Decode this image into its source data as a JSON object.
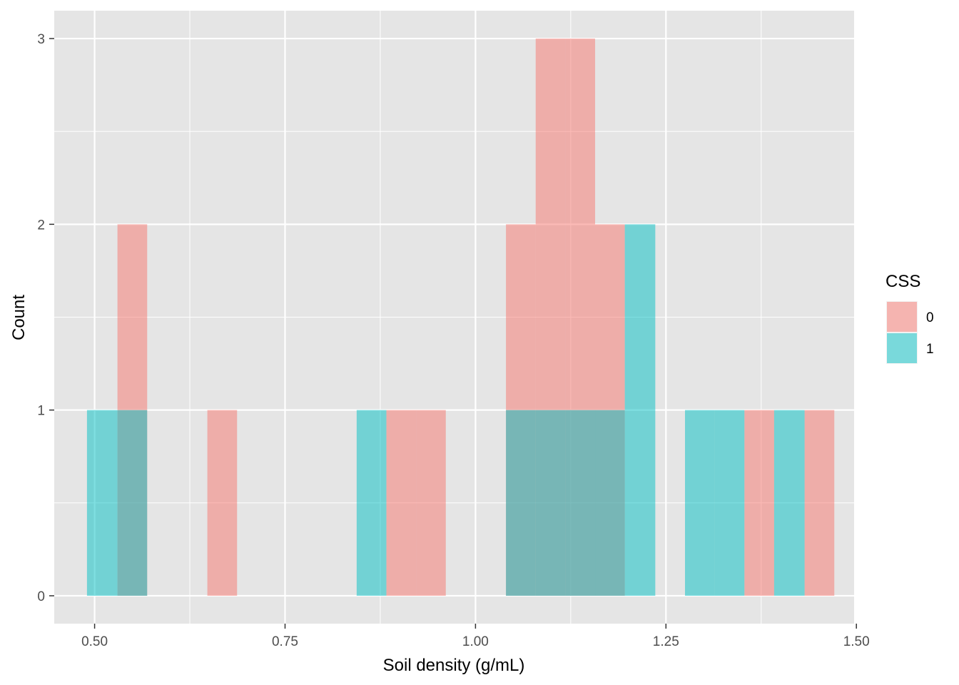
{
  "chart_data": {
    "type": "bar",
    "subtype": "histogram-overlaid",
    "title": "",
    "xlabel": "Soil density (g/mL)",
    "ylabel": "Count",
    "xlim": [
      0.447,
      1.497
    ],
    "ylim": [
      -0.15,
      3.15
    ],
    "x_ticks": [
      "0.50",
      "0.75",
      "1.00",
      "1.25",
      "1.50"
    ],
    "x_tick_values": [
      0.5,
      0.75,
      1.0,
      1.25,
      1.5
    ],
    "y_ticks": [
      "0",
      "1",
      "2",
      "3"
    ],
    "y_tick_values": [
      0,
      1,
      2,
      3
    ],
    "grid": true,
    "legend_position": "right",
    "legend_title": "CSS",
    "bin_width": 0.0392,
    "series": [
      {
        "name": "0",
        "color": "#F8766D",
        "bins": [
          {
            "x0": 0.53,
            "x1": 0.569,
            "count": 2
          },
          {
            "x0": 0.648,
            "x1": 0.687,
            "count": 1
          },
          {
            "x0": 0.883,
            "x1": 0.922,
            "count": 1
          },
          {
            "x0": 0.922,
            "x1": 0.961,
            "count": 1
          },
          {
            "x0": 1.04,
            "x1": 1.079,
            "count": 2
          },
          {
            "x0": 1.079,
            "x1": 1.118,
            "count": 3
          },
          {
            "x0": 1.118,
            "x1": 1.157,
            "count": 3
          },
          {
            "x0": 1.157,
            "x1": 1.196,
            "count": 2
          },
          {
            "x0": 1.353,
            "x1": 1.392,
            "count": 1
          },
          {
            "x0": 1.432,
            "x1": 1.471,
            "count": 1
          }
        ]
      },
      {
        "name": "1",
        "color": "#00BFC4",
        "bins": [
          {
            "x0": 0.49,
            "x1": 0.53,
            "count": 1
          },
          {
            "x0": 0.53,
            "x1": 0.569,
            "count": 1
          },
          {
            "x0": 0.844,
            "x1": 0.883,
            "count": 1
          },
          {
            "x0": 1.04,
            "x1": 1.079,
            "count": 1
          },
          {
            "x0": 1.079,
            "x1": 1.118,
            "count": 1
          },
          {
            "x0": 1.118,
            "x1": 1.157,
            "count": 1
          },
          {
            "x0": 1.157,
            "x1": 1.196,
            "count": 1
          },
          {
            "x0": 1.196,
            "x1": 1.236,
            "count": 2
          },
          {
            "x0": 1.275,
            "x1": 1.314,
            "count": 1
          },
          {
            "x0": 1.314,
            "x1": 1.353,
            "count": 1
          },
          {
            "x0": 1.392,
            "x1": 1.432,
            "count": 1
          }
        ]
      }
    ],
    "legend": [
      {
        "label": "0",
        "color": "#F8766D"
      },
      {
        "label": "1",
        "color": "#00BFC4"
      }
    ],
    "bar_opacity": 0.5,
    "panel_background": "#E5E5E5",
    "grid_color": "#FFFFFF"
  }
}
